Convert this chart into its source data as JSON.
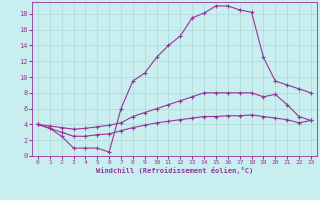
{
  "xlabel": "Windchill (Refroidissement éolien,°C)",
  "xlim": [
    -0.5,
    23.5
  ],
  "ylim": [
    0,
    19.5
  ],
  "xticks": [
    0,
    1,
    2,
    3,
    4,
    5,
    6,
    7,
    8,
    9,
    10,
    11,
    12,
    13,
    14,
    15,
    16,
    17,
    18,
    19,
    20,
    21,
    22,
    23
  ],
  "yticks": [
    0,
    2,
    4,
    6,
    8,
    10,
    12,
    14,
    16,
    18
  ],
  "bg_color": "#c8eef0",
  "line_color": "#993399",
  "grid_color": "#b0d8d8",
  "line1_y": [
    4.0,
    3.5,
    2.5,
    1.0,
    1.0,
    1.0,
    0.5,
    6.0,
    9.5,
    10.5,
    12.5,
    14.0,
    15.2,
    17.5,
    18.1,
    19.0,
    19.0,
    18.5,
    18.2,
    12.5,
    9.5,
    9.0,
    8.5,
    8.0
  ],
  "line2_y": [
    4.0,
    3.8,
    3.6,
    3.4,
    3.5,
    3.7,
    3.9,
    4.2,
    5.0,
    5.5,
    6.0,
    6.5,
    7.0,
    7.5,
    8.0,
    8.0,
    8.0,
    8.0,
    8.0,
    7.5,
    7.8,
    6.5,
    5.0,
    4.5
  ],
  "line3_y": [
    4.0,
    3.5,
    3.0,
    2.5,
    2.5,
    2.7,
    2.8,
    3.2,
    3.6,
    3.9,
    4.2,
    4.4,
    4.6,
    4.8,
    5.0,
    5.0,
    5.1,
    5.1,
    5.2,
    5.0,
    4.8,
    4.6,
    4.2,
    4.5
  ]
}
